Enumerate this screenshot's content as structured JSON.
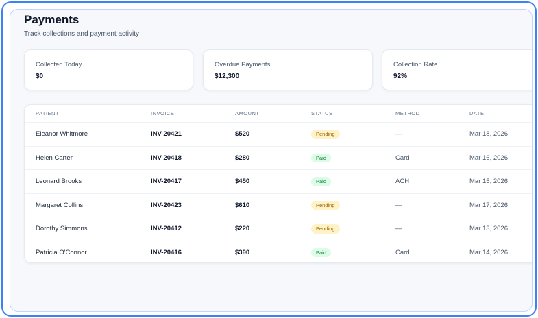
{
  "header": {
    "title": "Payments",
    "subtitle": "Track collections and payment activity"
  },
  "stats": [
    {
      "label": "Collected Today",
      "value": "$0"
    },
    {
      "label": "Overdue Payments",
      "value": "$12,300"
    },
    {
      "label": "Collection Rate",
      "value": "92%"
    }
  ],
  "table": {
    "headers": {
      "patient": "PATIENT",
      "invoice": "INVOICE",
      "amount": "AMOUNT",
      "status": "STATUS",
      "method": "METHOD",
      "date": "DATE"
    },
    "rows": [
      {
        "patient": "Eleanor Whitmore",
        "invoice": "INV-20421",
        "amount": "$520",
        "status": "Pending",
        "method": "—",
        "date": "Mar 18, 2026"
      },
      {
        "patient": "Helen Carter",
        "invoice": "INV-20418",
        "amount": "$280",
        "status": "Paid",
        "method": "Card",
        "date": "Mar 16, 2026"
      },
      {
        "patient": "Leonard Brooks",
        "invoice": "INV-20417",
        "amount": "$450",
        "status": "Paid",
        "method": "ACH",
        "date": "Mar 15, 2026"
      },
      {
        "patient": "Margaret Collins",
        "invoice": "INV-20423",
        "amount": "$610",
        "status": "Pending",
        "method": "—",
        "date": "Mar 17, 2026"
      },
      {
        "patient": "Dorothy Simmons",
        "invoice": "INV-20412",
        "amount": "$220",
        "status": "Pending",
        "method": "—",
        "date": "Mar 13, 2026"
      },
      {
        "patient": "Patricia O'Connor",
        "invoice": "INV-20416",
        "amount": "$390",
        "status": "Paid",
        "method": "Card",
        "date": "Mar 14, 2026"
      }
    ]
  },
  "colors": {
    "frame_border": "#3b82f6",
    "pending_bg": "#fef3c7",
    "pending_text": "#a16207",
    "paid_bg": "#dcfce7",
    "paid_text": "#15803d"
  }
}
